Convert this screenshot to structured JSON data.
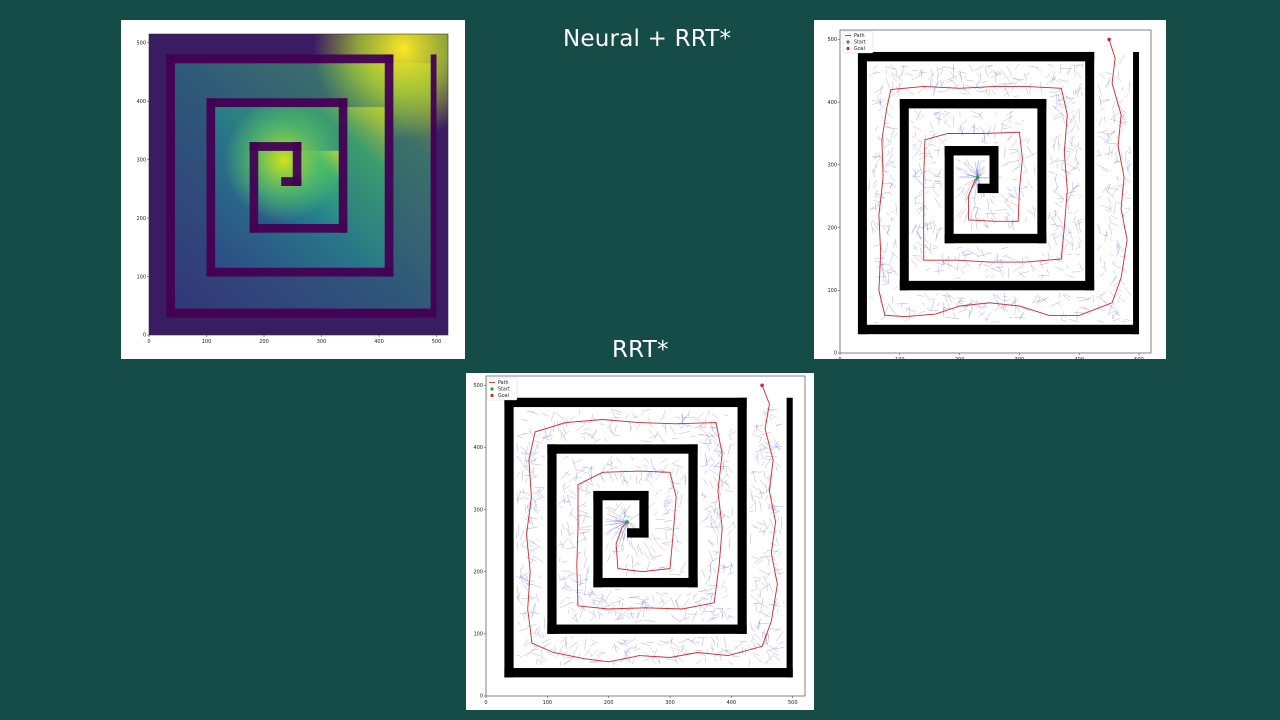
{
  "slide": {
    "title_neural": "Neural + RRT*",
    "title_rrt": "RRT*",
    "background_color": "#164c48"
  },
  "legend": {
    "path": "Path",
    "start": "Start",
    "goal": "Goal"
  },
  "axes": {
    "x_ticks": [
      "0",
      "100",
      "200",
      "300",
      "400",
      "500"
    ],
    "y_ticks": [
      "0",
      "100",
      "200",
      "300",
      "400",
      "500"
    ],
    "xlim": [
      0,
      520
    ],
    "ylim": [
      0,
      515
    ]
  },
  "colors": {
    "path": "#d62728",
    "start": "#2ca02c",
    "goal": "#d62728",
    "tree": "#3333dd",
    "wall": "#000000"
  },
  "scenario": {
    "start": [
      230,
      280
    ],
    "goal": [
      450,
      500
    ]
  }
}
